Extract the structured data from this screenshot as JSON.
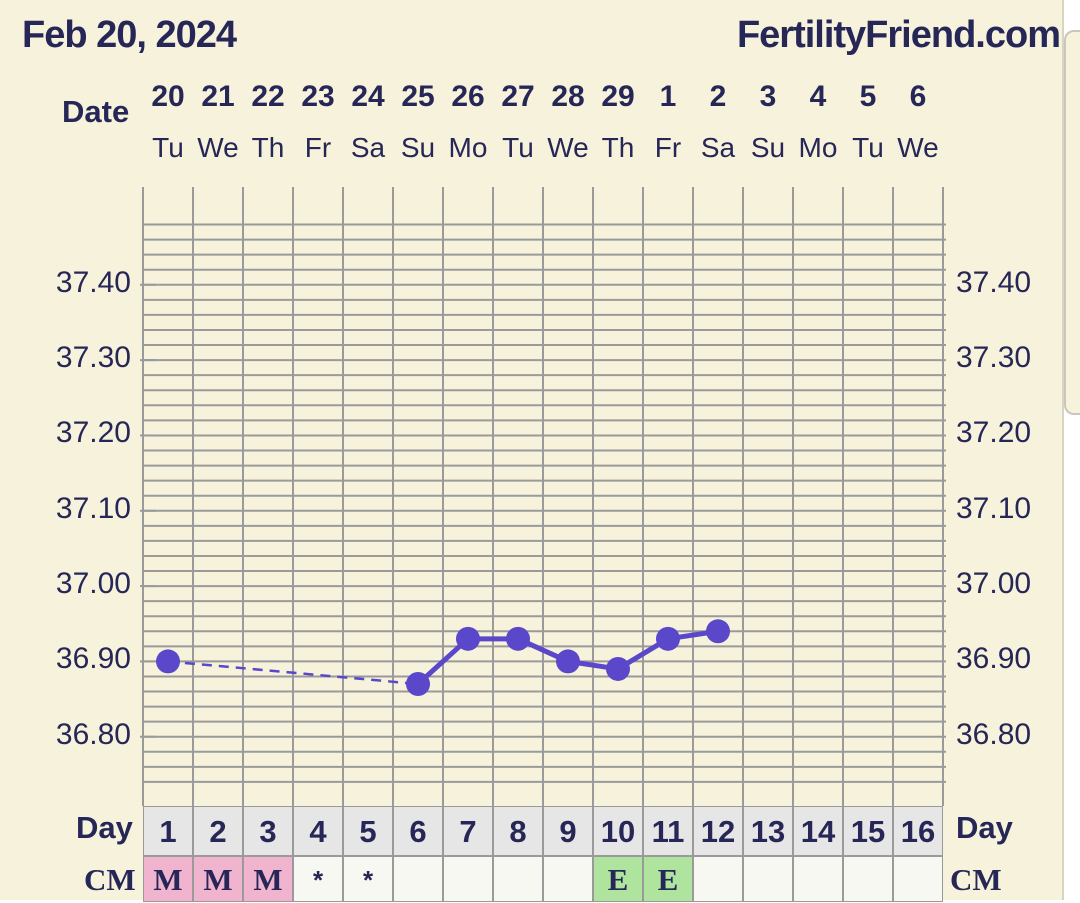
{
  "header": {
    "date": "Feb 20, 2024",
    "site": "FertilityFriend.com"
  },
  "labels": {
    "date_row": "Date",
    "day_row": "Day",
    "cm_row": "CM"
  },
  "columns": [
    {
      "date": "20",
      "dow": "Tu",
      "day": "1",
      "cm": "M"
    },
    {
      "date": "21",
      "dow": "We",
      "day": "2",
      "cm": "M"
    },
    {
      "date": "22",
      "dow": "Th",
      "day": "3",
      "cm": "M"
    },
    {
      "date": "23",
      "dow": "Fr",
      "day": "4",
      "cm": "*"
    },
    {
      "date": "24",
      "dow": "Sa",
      "day": "5",
      "cm": "*"
    },
    {
      "date": "25",
      "dow": "Su",
      "day": "6",
      "cm": ""
    },
    {
      "date": "26",
      "dow": "Mo",
      "day": "7",
      "cm": ""
    },
    {
      "date": "27",
      "dow": "Tu",
      "day": "8",
      "cm": ""
    },
    {
      "date": "28",
      "dow": "We",
      "day": "9",
      "cm": ""
    },
    {
      "date": "29",
      "dow": "Th",
      "day": "10",
      "cm": "E"
    },
    {
      "date": "1",
      "dow": "Fr",
      "day": "11",
      "cm": "E"
    },
    {
      "date": "2",
      "dow": "Sa",
      "day": "12",
      "cm": ""
    },
    {
      "date": "3",
      "dow": "Su",
      "day": "13",
      "cm": ""
    },
    {
      "date": "4",
      "dow": "Mo",
      "day": "14",
      "cm": ""
    },
    {
      "date": "5",
      "dow": "Tu",
      "day": "15",
      "cm": ""
    },
    {
      "date": "6",
      "dow": "We",
      "day": "16",
      "cm": ""
    }
  ],
  "chart_data": {
    "type": "line",
    "x": [
      1,
      6,
      7,
      8,
      9,
      10,
      11,
      12
    ],
    "y": [
      36.9,
      36.87,
      36.93,
      36.93,
      36.9,
      36.89,
      36.93,
      36.94
    ],
    "segments": [
      {
        "from_day": 1,
        "to_day": 6,
        "style": "dashed"
      },
      {
        "from_day": 6,
        "to_day": 12,
        "style": "solid"
      }
    ],
    "y_ticks": [
      "37.40",
      "37.30",
      "37.20",
      "37.10",
      "37.00",
      "36.90",
      "36.80"
    ],
    "ylim": [
      36.72,
      37.49
    ],
    "xlim": [
      1,
      16
    ],
    "grid": true,
    "color_line": "#5a47c9",
    "color_grid": "#9a9a9a",
    "color_background": "#f6f2dc"
  },
  "colors": {
    "cm_m": "#f1b4cf",
    "cm_e": "#aee49e",
    "text": "#272757"
  }
}
